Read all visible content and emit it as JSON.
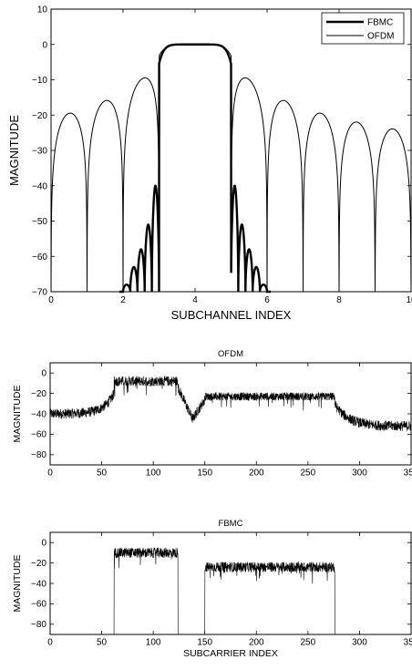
{
  "chart_data": [
    {
      "type": "line",
      "xlabel": "SUBCHANNEL INDEX",
      "ylabel": "MAGNITUDE",
      "xlim": [
        0,
        10
      ],
      "ylim": [
        -70,
        10
      ],
      "xticks": [
        "0",
        "2",
        "4",
        "6",
        "8",
        "10"
      ],
      "yticks": [
        "10",
        "0",
        "−10",
        "−20",
        "−30",
        "−40",
        "−50",
        "−60",
        "−70"
      ],
      "grid": false,
      "legend": "top-right",
      "series": [
        {
          "name": "FBMC",
          "line": "thick",
          "description_points": {
            "main_lobe": [
              3,
              5
            ],
            "side_lobes_x": [
              2.1,
              2.3,
              2.5,
              2.7,
              2.9,
              5.1,
              5.3,
              5.5,
              5.7,
              5.9
            ],
            "side_lobes_y": [
              -68,
              -63,
              -58,
              -51,
              -40,
              -40,
              -51,
              -58,
              -63,
              -68
            ]
          }
        },
        {
          "name": "OFDM",
          "line": "thin",
          "description_points": {
            "main_lobe": [
              3,
              5
            ],
            "side_lobes_x": [
              0.5,
              1.5,
              2.5,
              5.5,
              6.5,
              7.5,
              8.5,
              9.5
            ],
            "side_lobes_y": [
              -20.8,
              -17.9,
              -13.3,
              -13.3,
              -17.9,
              -20.8,
              -22.9,
              -24.6
            ],
            "nulls": [
              0,
              1,
              2,
              3,
              5,
              6,
              7,
              8,
              9,
              10
            ]
          }
        }
      ]
    },
    {
      "type": "line",
      "title": "OFDM",
      "xlabel": "",
      "ylabel": "MAGNITUDE",
      "xlim": [
        0,
        350
      ],
      "ylim": [
        -90,
        10
      ],
      "xticks": [
        "0",
        "50",
        "100",
        "150",
        "200",
        "250",
        "300",
        "350"
      ],
      "yticks": [
        "0",
        "−20",
        "−40",
        "−60",
        "−80"
      ],
      "bands": [
        {
          "x": [
            62,
            124
          ],
          "level": -8,
          "spread": 5
        },
        {
          "x": [
            150,
            276
          ],
          "level": -23,
          "spread": 4
        }
      ],
      "floor_left_at_0": -40,
      "floor_right_at_350": -52
    },
    {
      "type": "line",
      "title": "FBMC",
      "xlabel": "SUBCARRIER INDEX",
      "ylabel": "MAGNITUDE",
      "xlim": [
        0,
        350
      ],
      "ylim": [
        -90,
        10
      ],
      "xticks": [
        "0",
        "50",
        "100",
        "150",
        "200",
        "250",
        "300",
        "350"
      ],
      "yticks": [
        "0",
        "−20",
        "−40",
        "−60",
        "−80"
      ],
      "bands": [
        {
          "x": [
            62,
            124
          ],
          "level": -10,
          "spread": 5
        },
        {
          "x": [
            150,
            276
          ],
          "level": -24,
          "spread": 5
        }
      ]
    }
  ]
}
